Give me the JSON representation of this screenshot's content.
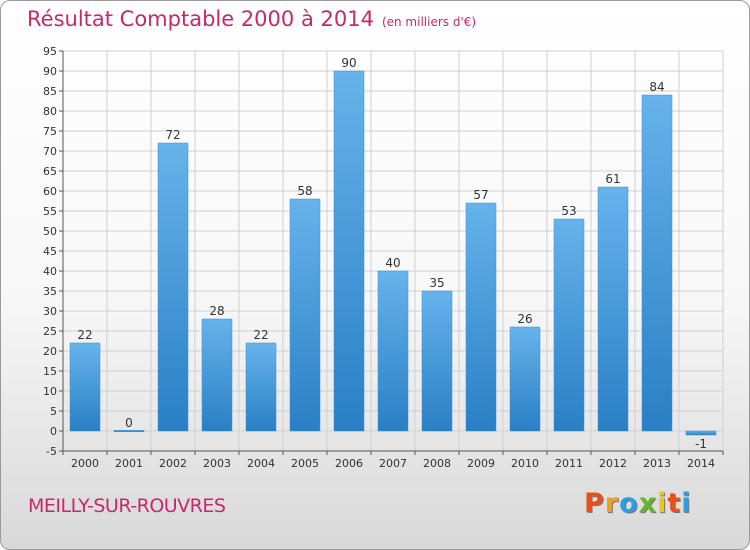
{
  "header": {
    "title": "Résultat Comptable 2000 à 2014",
    "subtitle": "(en milliers d'€)"
  },
  "footer": {
    "commune": "MEILLY-SUR-ROUVRES",
    "logo_letters": [
      "P",
      "r",
      "o",
      "x",
      "i",
      "t",
      "i"
    ]
  },
  "colors": {
    "title": "#c8286a",
    "bar_light": "#66b3ec",
    "bar_dark": "#2a7fc4",
    "grid": "#d0d0d0",
    "logo": [
      "#e8501c",
      "#f0a01e",
      "#2a9fe0",
      "#6ab42c",
      "#f0c419",
      "#e8501c",
      "#2a9fe0"
    ]
  },
  "chart_data": {
    "type": "bar",
    "title": "Résultat Comptable 2000 à 2014",
    "subtitle": "(en milliers d'€)",
    "xlabel": "",
    "ylabel": "",
    "categories": [
      "2000",
      "2001",
      "2002",
      "2003",
      "2004",
      "2005",
      "2006",
      "2007",
      "2008",
      "2009",
      "2010",
      "2011",
      "2012",
      "2013",
      "2014"
    ],
    "values": [
      22,
      0,
      72,
      28,
      22,
      58,
      90,
      40,
      35,
      57,
      26,
      53,
      61,
      84,
      -1
    ],
    "value_labels": [
      "22",
      "0",
      "72",
      "28",
      "22",
      "58",
      "90",
      "40",
      "35",
      "57",
      "26",
      "53",
      "61",
      "84",
      "-1"
    ],
    "ylim": [
      -5,
      95
    ],
    "yticks": [
      -5,
      0,
      5,
      10,
      15,
      20,
      25,
      30,
      35,
      40,
      45,
      50,
      55,
      60,
      65,
      70,
      75,
      80,
      85,
      90,
      95
    ],
    "grid": true,
    "legend": "none"
  }
}
